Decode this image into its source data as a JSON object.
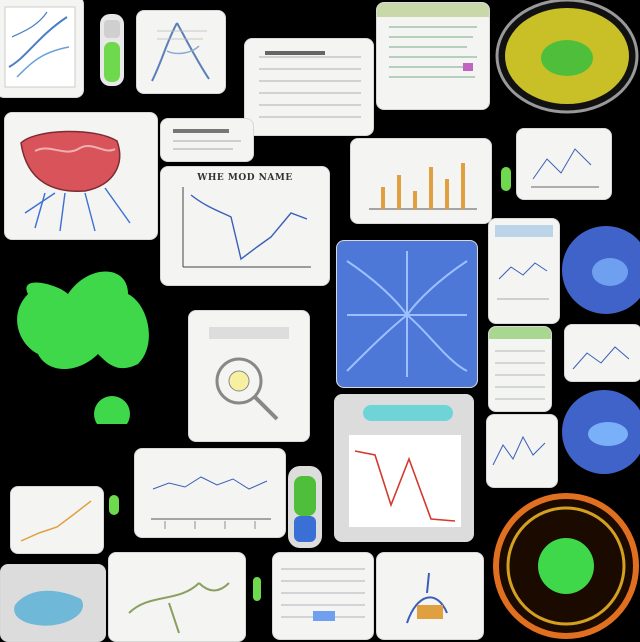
{
  "colors": {
    "background": "#000000",
    "card": "#f4f4f2",
    "brain_red": "#d9535b",
    "vein_blue": "#3b6fd6",
    "cell_green": "#3fd84a",
    "cell_yellow": "#d6c92a",
    "plot_red": "#d23a2e",
    "plot_blue": "#3a5fb8",
    "plot_orange": "#e0a040"
  },
  "labels": {
    "center_chart_title": "WHE MOD NAME"
  },
  "icons": [
    "organ-sketch-icon",
    "green-vial-icon",
    "brain-illustration-icon",
    "green-cell-cluster-icon",
    "blue-neural-network-icon",
    "yellow-cell-icon",
    "fiery-cell-icon",
    "blue-tube-icon",
    "cyan-device-icon"
  ]
}
